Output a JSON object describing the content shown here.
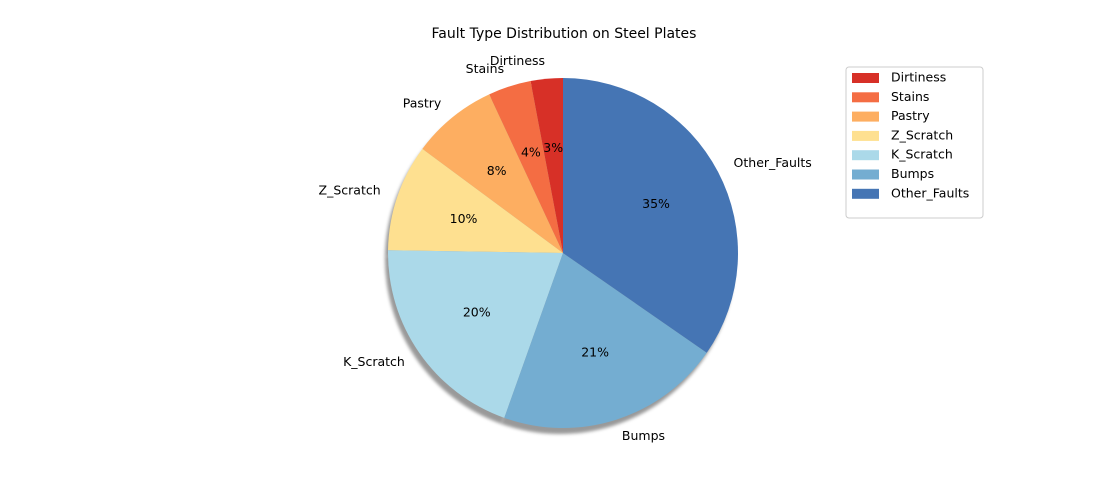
{
  "chart_data": {
    "type": "pie",
    "title": "Fault Type Distribution on Steel Plates",
    "categories": [
      "Dirtiness",
      "Stains",
      "Pastry",
      "Z_Scratch",
      "K_Scratch",
      "Bumps",
      "Other_Faults"
    ],
    "values": [
      3,
      4,
      8,
      10,
      20,
      21,
      35
    ],
    "value_labels": [
      "3%",
      "4%",
      "8%",
      "10%",
      "20%",
      "21%",
      "35%"
    ],
    "colors": [
      "#d73027",
      "#f46d43",
      "#fdae61",
      "#fee090",
      "#abd9e9",
      "#74add1",
      "#4575b4"
    ],
    "shadow": true,
    "start_angle": "top",
    "direction": "counterclockwise",
    "legend": {
      "placement": "top-right",
      "entries": [
        "Dirtiness",
        "Stains",
        "Pastry",
        "Z_Scratch",
        "K_Scratch",
        "Bumps",
        "Other_Faults"
      ]
    }
  }
}
